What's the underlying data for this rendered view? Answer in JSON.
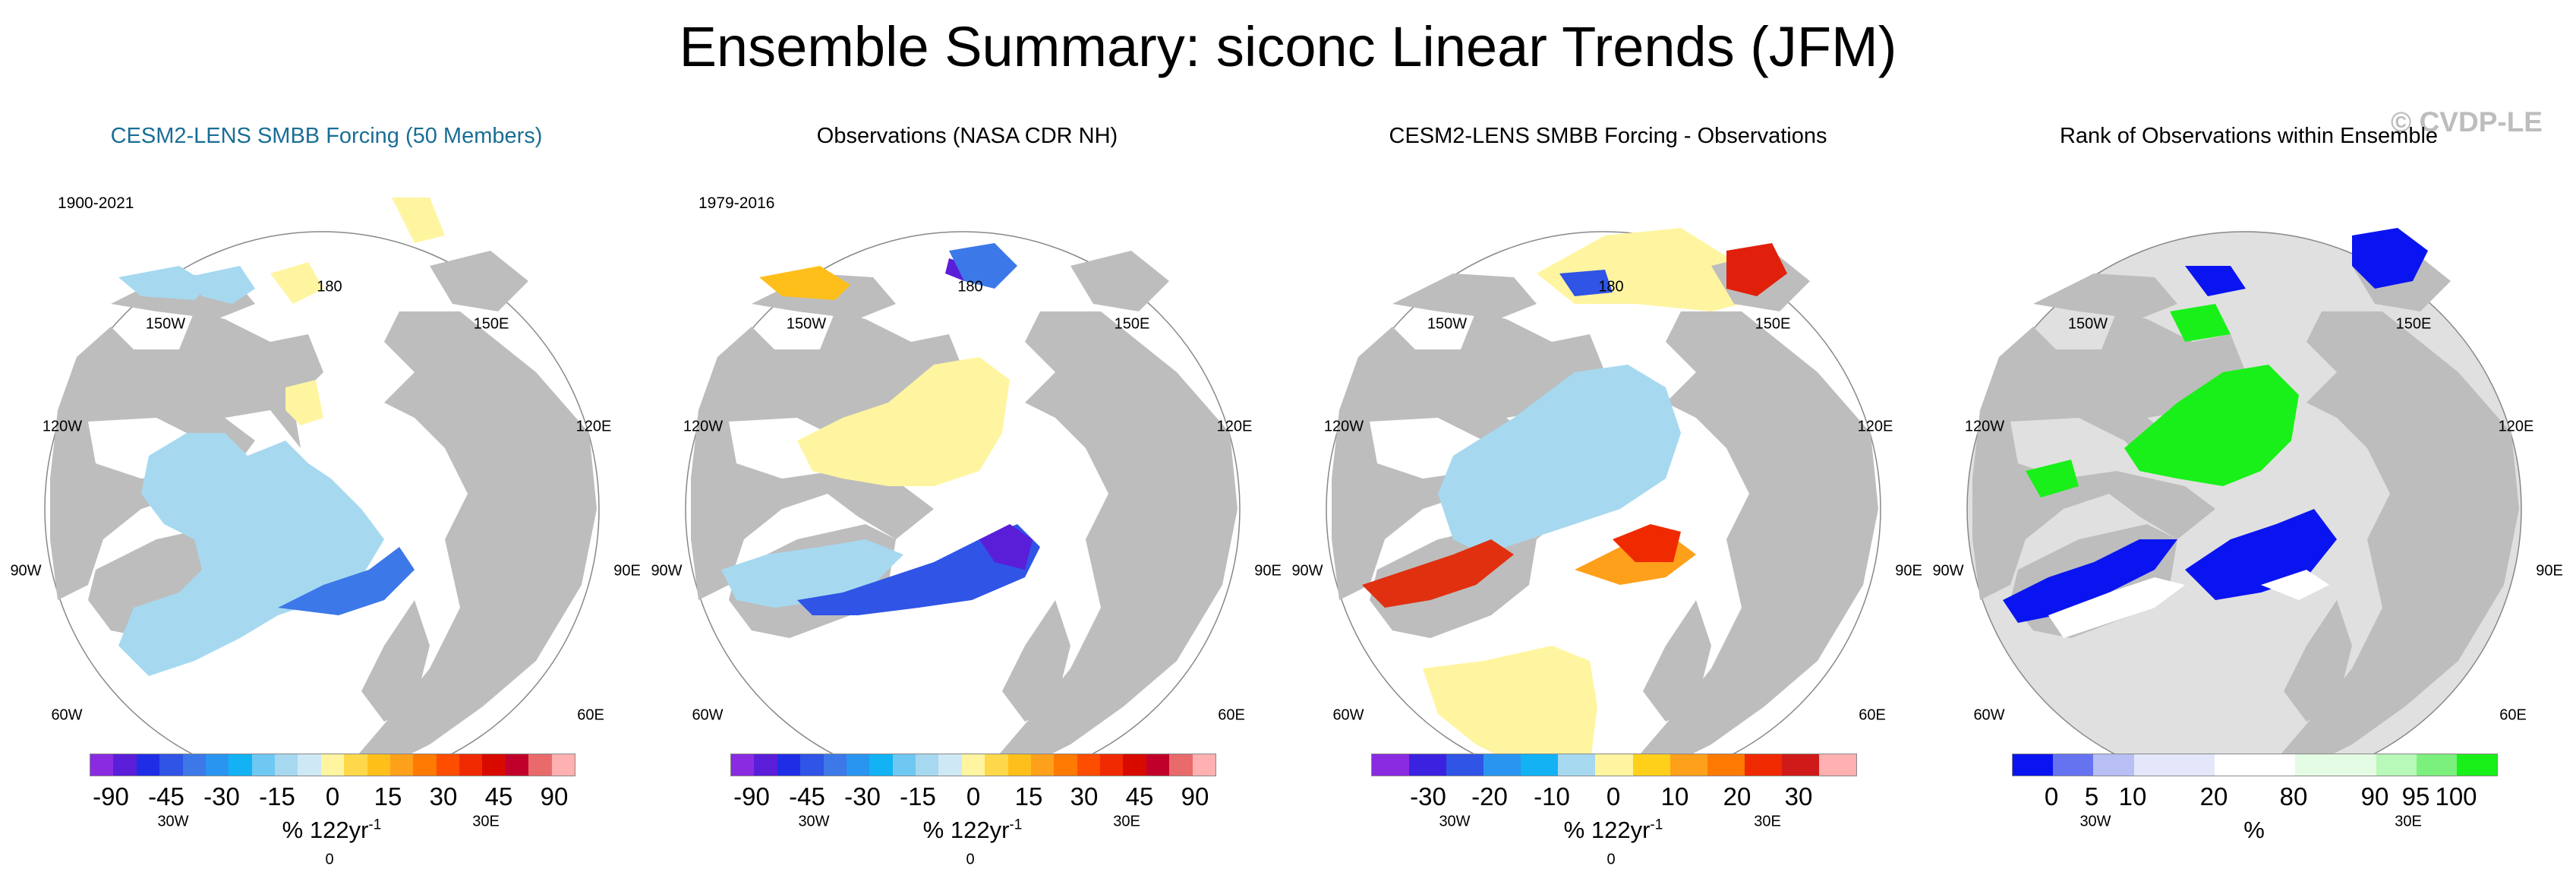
{
  "title": "Ensemble Summary: siconc Linear Trends (JFM)",
  "watermark": "© CVDP-LE",
  "axis_labels": {
    "lon_180": "180",
    "lon_150w": "150W",
    "lon_150e": "150E",
    "lon_120w": "120W",
    "lon_120e": "120E",
    "lon_90w": "90W",
    "lon_90e": "90E",
    "lon_60w": "60W",
    "lon_60e": "60E",
    "lon_30w": "30W",
    "lon_30e": "30E",
    "lon_0": "0"
  },
  "panels": [
    {
      "title": "CESM2-LENS SMBB Forcing (50 Members)",
      "period": "1900-2021",
      "units": "% 122yr",
      "units_exp": "-1",
      "colorbar_colors": [
        "#8a2be2",
        "#5a1ed8",
        "#1f2ee6",
        "#2f54e6",
        "#3c78e8",
        "#2a95f0",
        "#12b2f5",
        "#6fc8f2",
        "#a6d9f0",
        "#cfe8f6",
        "#fff5a0",
        "#ffd84a",
        "#ffbf1a",
        "#ffa01a",
        "#ff7a00",
        "#ff4d00",
        "#f02a00",
        "#d80a00",
        "#c0002a",
        "#e86a6a",
        "#ffb0b0"
      ],
      "colorbar_ticks": [
        "-90",
        "-45",
        "-30",
        "-15",
        "0",
        "15",
        "30",
        "45",
        "90"
      ]
    },
    {
      "title": "Observations (NASA CDR NH)",
      "period": "1979-2016",
      "units": "% 122yr",
      "units_exp": "-1",
      "colorbar_colors": [
        "#8a2be2",
        "#5a1ed8",
        "#1f2ee6",
        "#2f54e6",
        "#3c78e8",
        "#2a95f0",
        "#12b2f5",
        "#6fc8f2",
        "#a6d9f0",
        "#cfe8f6",
        "#fff5a0",
        "#ffd84a",
        "#ffbf1a",
        "#ffa01a",
        "#ff7a00",
        "#ff4d00",
        "#f02a00",
        "#d80a00",
        "#c0002a",
        "#e86a6a",
        "#ffb0b0"
      ],
      "colorbar_ticks": [
        "-90",
        "-45",
        "-30",
        "-15",
        "0",
        "15",
        "30",
        "45",
        "90"
      ]
    },
    {
      "title": "CESM2-LENS SMBB Forcing - Observations",
      "units": "% 122yr",
      "units_exp": "-1",
      "colorbar_colors": [
        "#8a2be2",
        "#3a22e0",
        "#2f54e6",
        "#2a95f0",
        "#12b2f5",
        "#a6d9f0",
        "#fff5a0",
        "#ffd01a",
        "#ffa01a",
        "#ff7a00",
        "#f02a00",
        "#d01a1a",
        "#ffb0b0"
      ],
      "colorbar_ticks": [
        "-30",
        "-20",
        "-10",
        "0",
        "10",
        "20",
        "30"
      ]
    },
    {
      "title": "Rank of Observations within Ensemble",
      "units": "%",
      "colorbar_colors": [
        "#0a14f0",
        "#6673f0",
        "#b8bff5",
        "#e4e7fa",
        "#e4e7fa",
        "#ffffff",
        "#ffffff",
        "#e4fbe4",
        "#e4fbe4",
        "#b8f8b8",
        "#7cf07c",
        "#19f019"
      ],
      "colorbar_ticks": [
        "0",
        "5",
        "10",
        "20",
        "80",
        "90",
        "95",
        "100"
      ]
    }
  ]
}
